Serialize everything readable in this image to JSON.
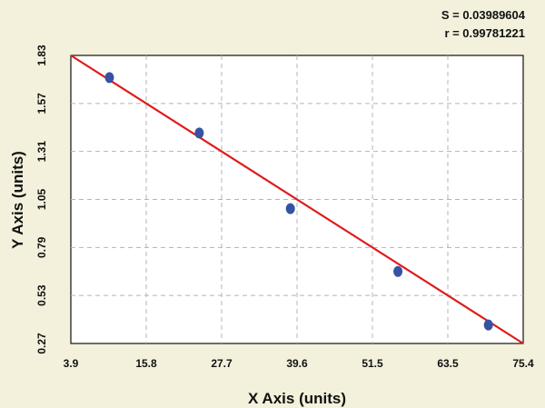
{
  "stats": {
    "s_line": "S = 0.03989604",
    "r_line": "r = 0.99781221"
  },
  "chart_data": {
    "type": "scatter",
    "xlabel": "X Axis (units)",
    "ylabel": "Y Axis (units)",
    "xlim": [
      3.9,
      75.4
    ],
    "ylim": [
      0.27,
      1.83
    ],
    "x_ticks": [
      "3.9",
      "15.8",
      "27.7",
      "39.6",
      "51.5",
      "63.5",
      "75.4"
    ],
    "y_ticks": [
      "0.27",
      "0.53",
      "0.79",
      "1.05",
      "1.31",
      "1.57",
      "1.83"
    ],
    "grid": true,
    "series": [
      {
        "points": [
          {
            "x": 10.0,
            "y": 1.71
          },
          {
            "x": 24.2,
            "y": 1.41
          },
          {
            "x": 38.6,
            "y": 1.0
          },
          {
            "x": 55.6,
            "y": 0.66
          },
          {
            "x": 69.9,
            "y": 0.37
          }
        ]
      }
    ],
    "fit_line": {
      "x": [
        3.9,
        75.4
      ],
      "y": [
        1.83,
        0.27
      ]
    },
    "colors": {
      "background": "#f3f1dc",
      "plot_background": "#ffffff",
      "points": "#3552a3",
      "fit_line": "#e01b1b",
      "grid": "#b4b4b4"
    }
  }
}
